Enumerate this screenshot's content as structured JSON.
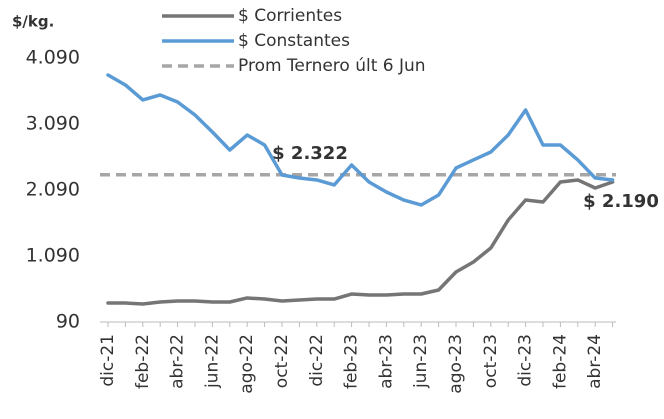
{
  "chart_data": {
    "type": "line",
    "unit_label": "$/kg.",
    "categories": [
      "dic-21",
      null,
      "feb-22",
      null,
      "abr-22",
      null,
      "jun-22",
      null,
      "ago-22",
      null,
      "oct-22",
      null,
      "dic-22",
      null,
      "feb-23",
      null,
      "abr-23",
      null,
      "jun-23",
      null,
      "ago-23",
      null,
      "oct-23",
      null,
      "dic-23",
      null,
      "feb-24",
      null,
      "abr-24",
      null
    ],
    "series": [
      {
        "name": "$ Corrientes",
        "color": "#757575",
        "values": [
          378,
          378,
          363,
          393,
          408,
          408,
          393,
          393,
          454,
          438,
          408,
          423,
          438,
          438,
          514,
          499,
          499,
          514,
          514,
          575,
          848,
          999,
          1211,
          1635,
          1938,
          1908,
          2211,
          2242,
          2120,
          2211
        ]
      },
      {
        "name": "$ Constantes",
        "color": "#5b9bd5",
        "values": [
          3832,
          3681,
          3454,
          3530,
          3423,
          3226,
          2969,
          2696,
          2923,
          2772,
          2317,
          2272,
          2242,
          2166,
          2469,
          2211,
          2060,
          1938,
          1863,
          2014,
          2423,
          2545,
          2666,
          2923,
          3302,
          2772,
          2772,
          2545,
          2272,
          2242
        ]
      }
    ],
    "reference_line": {
      "name": "Prom Ternero últ 6 Jun",
      "value": 2322,
      "color": "#a6a6a6"
    },
    "annotations": [
      "$ 2.322",
      "$ 2.190"
    ],
    "ylim": [
      90,
      4090
    ],
    "yticks": [
      90,
      {
        "value": 1090,
        "label": "1.090"
      },
      {
        "value": 2090,
        "label": "2.090"
      },
      {
        "value": 3090,
        "label": "3.090"
      },
      {
        "value": 4090,
        "label": "4.090"
      }
    ],
    "grid": false
  }
}
